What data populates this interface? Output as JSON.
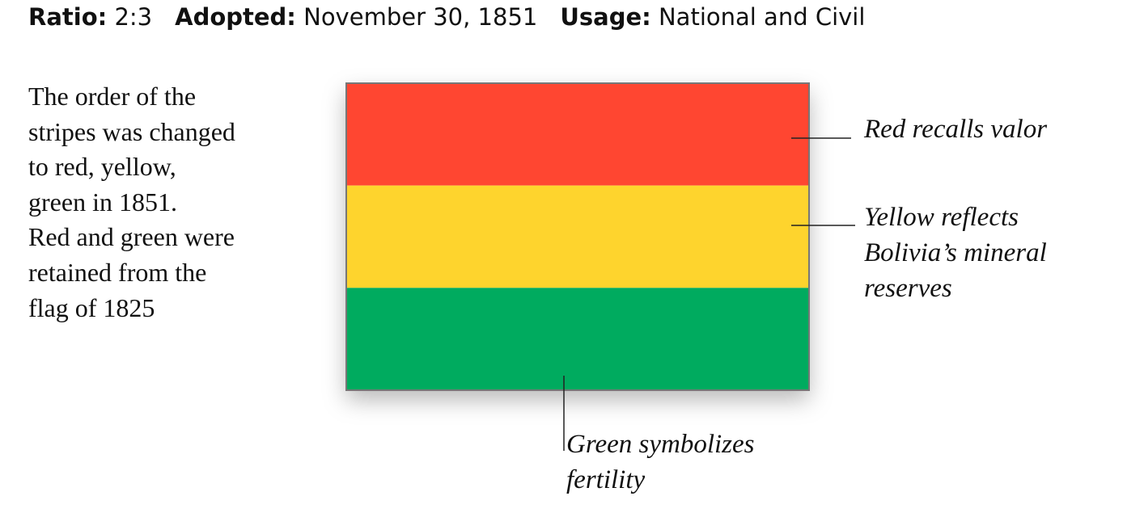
{
  "header": [
    {
      "label": "Ratio:",
      "value": "2:3"
    },
    {
      "label": "Adopted:",
      "value": "November 30, 1851"
    },
    {
      "label": "Usage:",
      "value": "National and Civil"
    }
  ],
  "description": [
    "The order of the",
    "stripes was changed",
    "to red, yellow,",
    "green in 1851.",
    "Red and green were",
    "retained from the",
    "flag of 1825"
  ],
  "flag": {
    "stripes": [
      {
        "color": "#ff4631",
        "annotation": [
          "Red recalls valor"
        ]
      },
      {
        "color": "#fed42d",
        "annotation": [
          "Yellow reflects",
          "Bolivia’s mineral",
          "reserves"
        ]
      },
      {
        "color": "#00ab5f",
        "annotation": [
          "Green symbolizes",
          "fertility"
        ]
      }
    ]
  }
}
